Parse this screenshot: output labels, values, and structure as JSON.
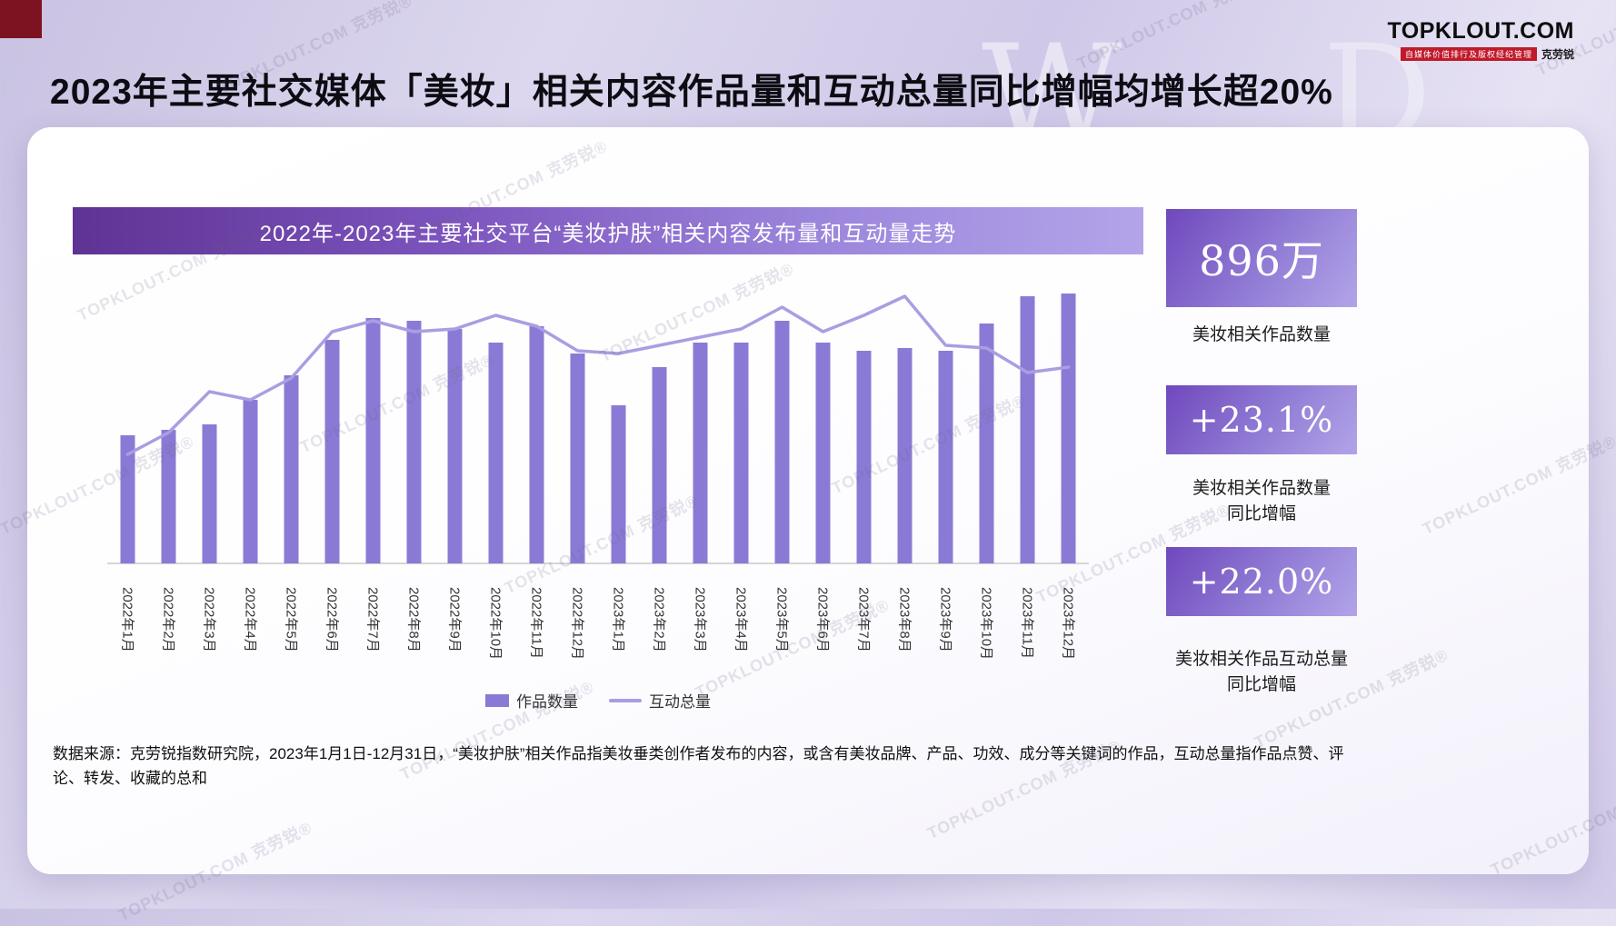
{
  "page": {
    "title": "2023年主要社交媒体「美妆」相关内容作品量和互动总量同比增幅均增长超20%"
  },
  "logo": {
    "name": "TOPKLOUT.COM",
    "tagline": "自媒体价值排行及版权经纪管理",
    "brand_cn": "克劳锐"
  },
  "bg_letters": [
    "W",
    "D"
  ],
  "watermark_text": "TOPKLOUT.COM 克劳锐®",
  "chart_banner": "2022年-2023年主要社交平台“美妆护肤”相关内容发布量和互动量走势",
  "chart_data": {
    "type": "bar",
    "note": "combo bar+line, values are relative estimates 0-100 (no numeric axis shown in source)",
    "categories": [
      "2022年1月",
      "2022年2月",
      "2022年3月",
      "2022年4月",
      "2022年5月",
      "2022年6月",
      "2022年7月",
      "2022年8月",
      "2022年9月",
      "2022年10月",
      "2022年11月",
      "2022年12月",
      "2023年1月",
      "2023年2月",
      "2023年3月",
      "2023年4月",
      "2023年5月",
      "2023年6月",
      "2023年7月",
      "2023年8月",
      "2023年9月",
      "2023年10月",
      "2023年11月",
      "2023年12月"
    ],
    "series": [
      {
        "name": "作品数量",
        "type": "bar",
        "color": "#8b7ad5",
        "values": [
          47,
          49,
          51,
          60,
          69,
          82,
          90,
          89,
          86,
          81,
          87,
          77,
          58,
          72,
          81,
          81,
          89,
          81,
          78,
          79,
          78,
          88,
          98,
          99
        ]
      },
      {
        "name": "互动总量",
        "type": "line",
        "color": "#ab9de2",
        "values": [
          40,
          48,
          63,
          60,
          68,
          85,
          89,
          85,
          86,
          91,
          87,
          78,
          77,
          80,
          83,
          86,
          94,
          85,
          91,
          98,
          80,
          79,
          70,
          72
        ]
      }
    ],
    "ylim": [
      0,
      100
    ],
    "grid": false,
    "legend_position": "bottom",
    "axis_color": "#c9c9c9"
  },
  "stats": [
    {
      "value": "896万",
      "label": "美妆相关作品数量"
    },
    {
      "value": "+23.1%",
      "label_line1": "美妆相关作品数量",
      "label_line2": "同比增幅"
    },
    {
      "value": "+22.0%",
      "label_line1": "美妆相关作品互动总量",
      "label_line2": "同比增幅"
    }
  ],
  "source_note": "数据来源：克劳锐指数研究院，2023年1月1日-12月31日，“美妆护肤”相关作品指美妆垂类创作者发布的内容，或含有美妆品牌、产品、功效、成分等关键词的作品，互动总量指作品点赞、评论、转发、收藏的总和"
}
